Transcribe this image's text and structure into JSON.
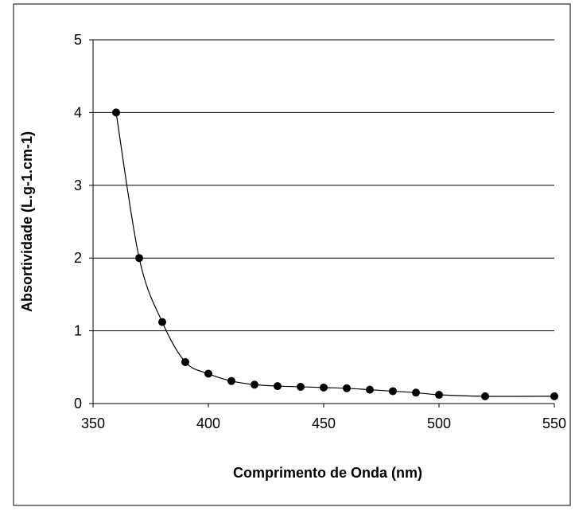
{
  "chart_data": {
    "type": "scatter",
    "title": "",
    "xlabel": "Comprimento de Onda (nm)",
    "ylabel": "Absortividade (L.g-1.cm-1)",
    "xlim": [
      350,
      550
    ],
    "ylim": [
      0,
      5
    ],
    "xticks": [
      350,
      400,
      450,
      500,
      550
    ],
    "yticks": [
      0,
      1,
      2,
      3,
      4,
      5
    ],
    "grid": "horizontal",
    "legend": "none",
    "colors": {
      "series": "#000000",
      "grid": "#000000",
      "background": "#ffffff",
      "border": "#000000"
    },
    "series": [
      {
        "x": [
          360,
          370,
          380,
          390,
          400,
          410,
          420,
          430,
          440,
          450,
          460,
          470,
          480,
          490,
          500,
          520,
          550
        ],
        "y": [
          4.0,
          2.0,
          1.12,
          0.57,
          0.41,
          0.31,
          0.26,
          0.24,
          0.23,
          0.22,
          0.21,
          0.19,
          0.17,
          0.15,
          0.12,
          0.1,
          0.1
        ],
        "marker": "circle",
        "line": "smooth"
      }
    ]
  }
}
